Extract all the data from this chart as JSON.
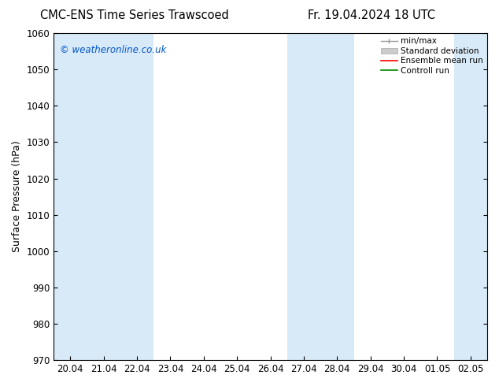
{
  "title_left": "CMC-ENS Time Series Trawscoed",
  "title_right": "Fr. 19.04.2024 18 UTC",
  "ylabel": "Surface Pressure (hPa)",
  "ylim": [
    970,
    1060
  ],
  "yticks": [
    970,
    980,
    990,
    1000,
    1010,
    1020,
    1030,
    1040,
    1050,
    1060
  ],
  "x_tick_labels": [
    "20.04",
    "21.04",
    "22.04",
    "23.04",
    "24.04",
    "25.04",
    "26.04",
    "27.04",
    "28.04",
    "29.04",
    "30.04",
    "01.05",
    "02.05"
  ],
  "watermark": "© weatheronline.co.uk",
  "watermark_color": "#0055cc",
  "bg_color": "#ffffff",
  "plot_bg_color": "#ffffff",
  "shaded_band_color": "#d8eaf8",
  "shaded_positions": [
    0,
    1,
    2,
    7,
    8,
    12
  ],
  "legend_items": [
    {
      "label": "min/max",
      "color": "#999999",
      "style": "minmax"
    },
    {
      "label": "Standard deviation",
      "color": "#bbbbbb",
      "style": "stddev"
    },
    {
      "label": "Ensemble mean run",
      "color": "#ff0000",
      "style": "line"
    },
    {
      "label": "Controll run",
      "color": "#008800",
      "style": "line"
    }
  ],
  "title_fontsize": 10.5,
  "tick_fontsize": 8.5,
  "ylabel_fontsize": 9,
  "legend_fontsize": 7.5
}
